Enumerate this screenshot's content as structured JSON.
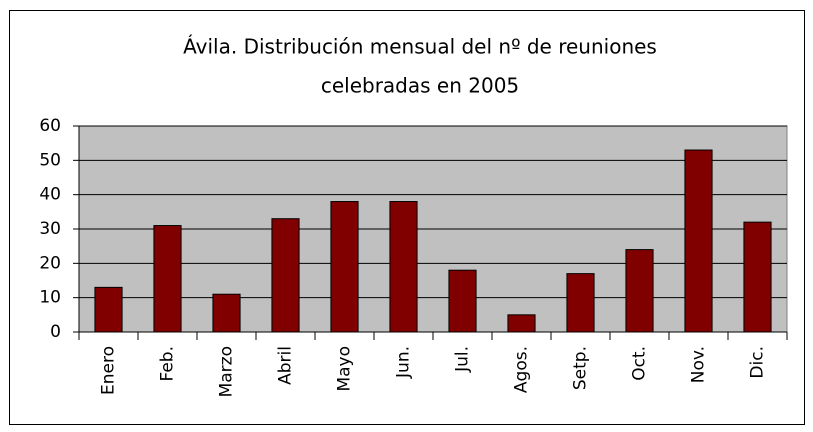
{
  "chart_data": {
    "type": "bar",
    "title": [
      "Ávila. Distribución mensual del nº de reuniones",
      "celebradas en 2005"
    ],
    "categories": [
      "Enero",
      "Feb.",
      "Marzo",
      "Abril",
      "Mayo",
      "Jun.",
      "Jul.",
      "Agos.",
      "Setp.",
      "Oct.",
      "Nov.",
      "Dic."
    ],
    "values": [
      13,
      31,
      11,
      33,
      38,
      38,
      18,
      5,
      17,
      24,
      53,
      32
    ],
    "color": "#800000",
    "ylim": [
      0,
      60
    ],
    "yticks": [
      0,
      10,
      20,
      30,
      40,
      50,
      60
    ],
    "grid": true
  }
}
